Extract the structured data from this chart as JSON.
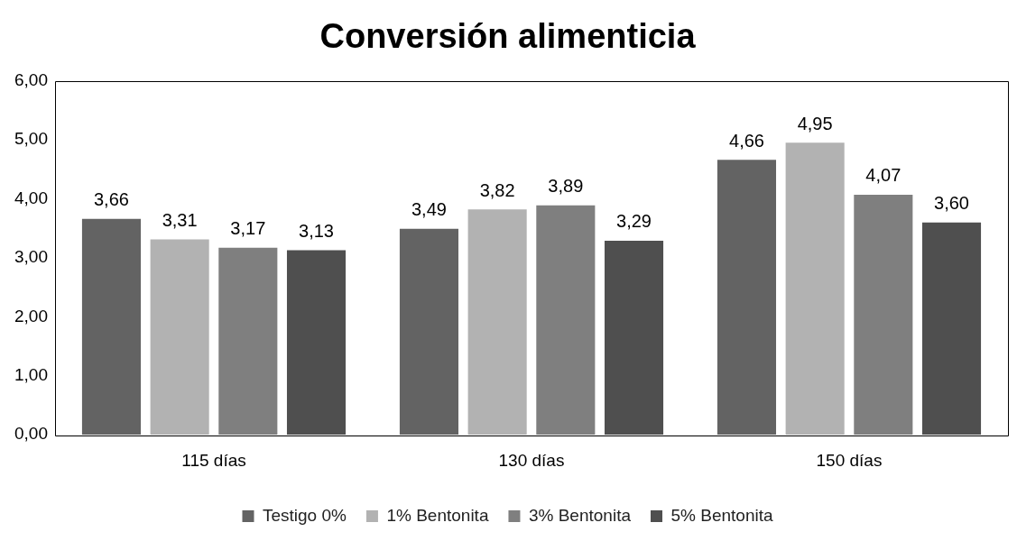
{
  "chart_data": {
    "type": "bar",
    "title": "Conversión alimenticia",
    "categories": [
      "115 días",
      "130 días",
      "150 días"
    ],
    "series": [
      {
        "name": "Testigo 0%",
        "color": "#636363",
        "values": [
          3.66,
          3.49,
          4.66
        ],
        "value_labels": [
          "3,66",
          "3,49",
          "4,66"
        ]
      },
      {
        "name": "1% Bentonita",
        "color": "#b2b2b2",
        "values": [
          3.31,
          3.82,
          4.95
        ],
        "value_labels": [
          "3,31",
          "3,82",
          "4,95"
        ]
      },
      {
        "name": "3% Bentonita",
        "color": "#7f7f7f",
        "values": [
          3.17,
          3.89,
          4.07
        ],
        "value_labels": [
          "3,17",
          "3,89",
          "4,07"
        ]
      },
      {
        "name": "5% Bentonita",
        "color": "#4f4f4f",
        "values": [
          3.13,
          3.29,
          3.6
        ],
        "value_labels": [
          "3,13",
          "3,29",
          "3,60"
        ]
      }
    ],
    "ylim": [
      0,
      6
    ],
    "yticks": [
      {
        "value": 0,
        "label": "0,00"
      },
      {
        "value": 1,
        "label": "1,00"
      },
      {
        "value": 2,
        "label": "2,00"
      },
      {
        "value": 3,
        "label": "3,00"
      },
      {
        "value": 4,
        "label": "4,00"
      },
      {
        "value": 5,
        "label": "5,00"
      },
      {
        "value": 6,
        "label": "6,00"
      }
    ],
    "legend": "bottom"
  }
}
